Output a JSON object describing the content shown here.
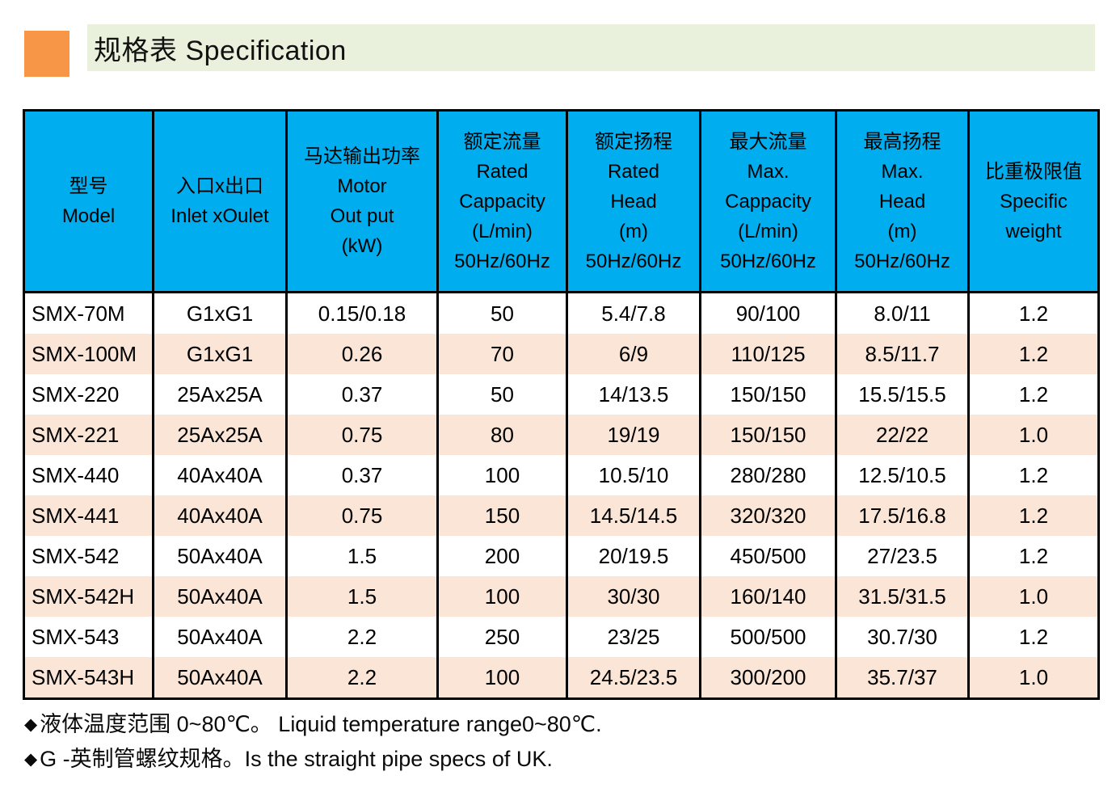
{
  "title": {
    "text": "规格表 Specification"
  },
  "colors": {
    "accent_orange": "#F79646",
    "title_band": "#E9F0DC",
    "header_blue": "#00AEEF",
    "stripe_peach": "#FBE5D6",
    "border": "#000000"
  },
  "table": {
    "columns": [
      {
        "id": "model",
        "lines": [
          "型号",
          "Model"
        ]
      },
      {
        "id": "inlet-outlet",
        "lines": [
          "入口x出口",
          "Inlet xOulet"
        ]
      },
      {
        "id": "motor-output",
        "lines": [
          "马达输出功率",
          "Motor",
          "Out put",
          "(kW)"
        ]
      },
      {
        "id": "rated-capacity",
        "lines": [
          "额定流量",
          "Rated",
          "Cappacity",
          "(L/min)",
          "50Hz/60Hz"
        ]
      },
      {
        "id": "rated-head",
        "lines": [
          "额定扬程",
          "Rated",
          "Head",
          "(m)",
          "50Hz/60Hz"
        ]
      },
      {
        "id": "max-capacity",
        "lines": [
          "最大流量",
          "Max.",
          "Cappacity",
          "(L/min)",
          "50Hz/60Hz"
        ]
      },
      {
        "id": "max-head",
        "lines": [
          "最高扬程",
          "Max.",
          "Head",
          "(m)",
          "50Hz/60Hz"
        ]
      },
      {
        "id": "specific-weight",
        "lines": [
          "比重极限值",
          "Specific",
          "weight"
        ]
      }
    ],
    "rows": [
      {
        "cells": [
          "SMX-70M",
          "G1xG1",
          "0.15/0.18",
          "50",
          "5.4/7.8",
          "90/100",
          "8.0/11",
          "1.2"
        ]
      },
      {
        "cells": [
          "SMX-100M",
          "G1xG1",
          "0.26",
          "70",
          "6/9",
          "110/125",
          "8.5/11.7",
          "1.2"
        ]
      },
      {
        "cells": [
          "SMX-220",
          "25Ax25A",
          "0.37",
          "50",
          "14/13.5",
          "150/150",
          "15.5/15.5",
          "1.2"
        ]
      },
      {
        "cells": [
          "SMX-221",
          "25Ax25A",
          "0.75",
          "80",
          "19/19",
          "150/150",
          "22/22",
          "1.0"
        ]
      },
      {
        "cells": [
          "SMX-440",
          "40Ax40A",
          "0.37",
          "100",
          "10.5/10",
          "280/280",
          "12.5/10.5",
          "1.2"
        ]
      },
      {
        "cells": [
          "SMX-441",
          "40Ax40A",
          "0.75",
          "150",
          "14.5/14.5",
          "320/320",
          "17.5/16.8",
          "1.2"
        ]
      },
      {
        "cells": [
          "SMX-542",
          "50Ax40A",
          "1.5",
          "200",
          "20/19.5",
          "450/500",
          "27/23.5",
          "1.2"
        ]
      },
      {
        "cells": [
          "SMX-542H",
          "50Ax40A",
          "1.5",
          "100",
          "30/30",
          "160/140",
          "31.5/31.5",
          "1.0"
        ]
      },
      {
        "cells": [
          "SMX-543",
          "50Ax40A",
          "2.2",
          "250",
          "23/25",
          "500/500",
          "30.7/30",
          "1.2"
        ]
      },
      {
        "cells": [
          "SMX-543H",
          "50Ax40A",
          "2.2",
          "100",
          "24.5/23.5",
          "300/200",
          "35.7/37",
          "1.0"
        ]
      }
    ]
  },
  "footnotes": [
    {
      "bullet": "◆",
      "text": "液体温度范围 0~80℃。 Liquid temperature range0~80℃."
    },
    {
      "bullet": "◆",
      "text": "G -英制管螺纹规格。Is the straight pipe specs of UK."
    }
  ]
}
